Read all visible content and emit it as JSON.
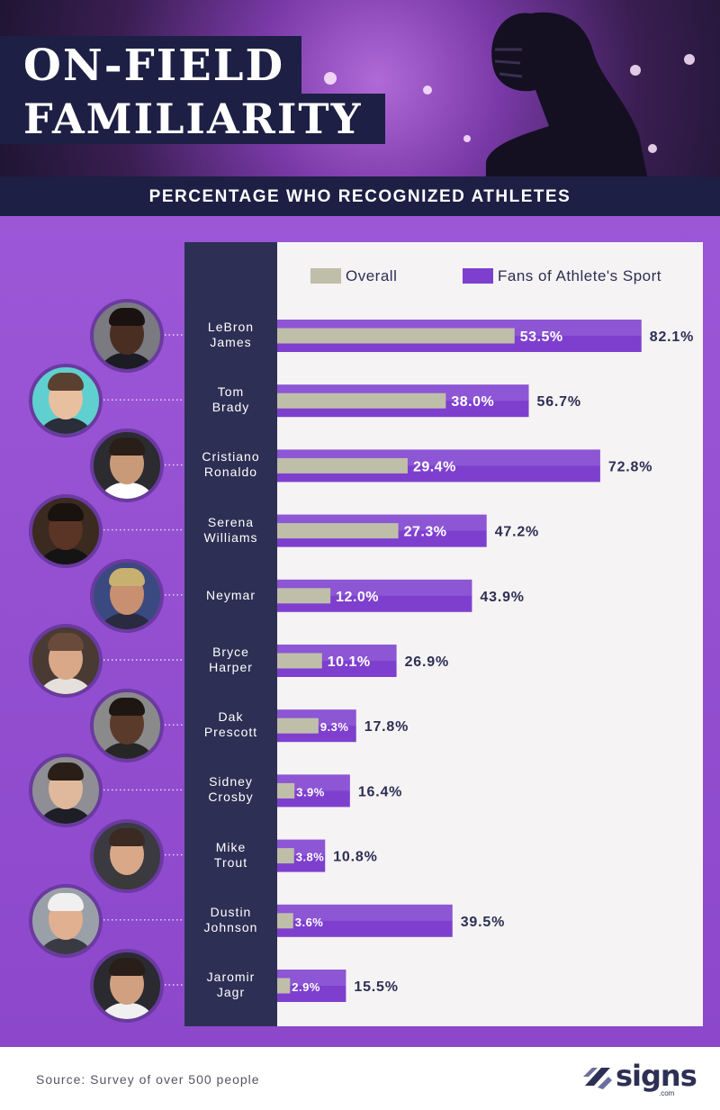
{
  "header": {
    "title_line1": "ON-FIELD",
    "title_line2": "FAMILIARITY",
    "subtitle": "PERCENTAGE WHO RECOGNIZED ATHLETES"
  },
  "colors": {
    "overall": "#bfbfa9",
    "fans": "#7e3fcf",
    "navy": "#2d2f54",
    "purple_bg": "#9150d2"
  },
  "legend": {
    "overall": "Overall",
    "fans": "Fans of Athlete's Sport"
  },
  "chart_data": {
    "type": "bar",
    "orientation": "horizontal",
    "title": "PERCENTAGE WHO RECOGNIZED ATHLETES",
    "unit": "%",
    "xlim": [
      0,
      100
    ],
    "categories": [
      {
        "line1": "LeBron",
        "line2": "James"
      },
      {
        "line1": "Tom",
        "line2": "Brady"
      },
      {
        "line1": "Cristiano",
        "line2": "Ronaldo"
      },
      {
        "line1": "Serena",
        "line2": "Williams"
      },
      {
        "line1": "Neymar",
        "line2": ""
      },
      {
        "line1": "Bryce",
        "line2": "Harper"
      },
      {
        "line1": "Dak",
        "line2": "Prescott"
      },
      {
        "line1": "Sidney",
        "line2": "Crosby"
      },
      {
        "line1": "Mike",
        "line2": "Trout"
      },
      {
        "line1": "Dustin",
        "line2": "Johnson"
      },
      {
        "line1": "Jaromir",
        "line2": "Jagr"
      }
    ],
    "series": [
      {
        "name": "Overall",
        "values": [
          53.5,
          38.0,
          29.4,
          27.3,
          12.0,
          10.1,
          9.3,
          3.9,
          3.8,
          3.6,
          2.9
        ]
      },
      {
        "name": "Fans of Athlete's Sport",
        "values": [
          82.1,
          56.7,
          72.8,
          47.2,
          43.9,
          26.9,
          17.8,
          16.4,
          10.8,
          39.5,
          15.5
        ]
      }
    ]
  },
  "avatars": [
    {
      "icon": "athlete-photo-lebron-james",
      "bg": "#7a7a80",
      "skin": "#4a2e22",
      "hair": "#1a1210",
      "shirt": "#1c1c24"
    },
    {
      "icon": "athlete-photo-tom-brady",
      "bg": "#5fd0cf",
      "skin": "#e8c0a0",
      "hair": "#5a4030",
      "shirt": "#2a2d3a"
    },
    {
      "icon": "athlete-photo-cristiano-ronaldo",
      "bg": "#2b2b30",
      "skin": "#c89a78",
      "hair": "#2a1e18",
      "shirt": "#ffffff"
    },
    {
      "icon": "athlete-photo-serena-williams",
      "bg": "#3a2a20",
      "skin": "#5a3424",
      "hair": "#1a120e",
      "shirt": "#141414"
    },
    {
      "icon": "athlete-photo-neymar",
      "bg": "#3a4a80",
      "skin": "#c89070",
      "hair": "#c8b070",
      "shirt": "#2a2a40"
    },
    {
      "icon": "athlete-photo-bryce-harper",
      "bg": "#4a3a34",
      "skin": "#d8a888",
      "hair": "#6a4a3a",
      "shirt": "#e6e0dc"
    },
    {
      "icon": "athlete-photo-dak-prescott",
      "bg": "#8a8a8a",
      "skin": "#5a3a2a",
      "hair": "#1e1612",
      "shirt": "#262626"
    },
    {
      "icon": "athlete-photo-sidney-crosby",
      "bg": "#8e8e94",
      "skin": "#e0b89c",
      "hair": "#2a1e18",
      "shirt": "#1e1e26"
    },
    {
      "icon": "athlete-photo-mike-trout",
      "bg": "#3a3a40",
      "skin": "#d8a888",
      "hair": "#3a2a22",
      "shirt": "#3a3a3a"
    },
    {
      "icon": "athlete-photo-dustin-johnson",
      "bg": "#9aa0a8",
      "skin": "#e0b090",
      "hair": "#f0f0f0",
      "shirt": "#3a3a44"
    },
    {
      "icon": "athlete-photo-jaromir-jagr",
      "bg": "#2a2a30",
      "skin": "#d0a080",
      "hair": "#2a1e18",
      "shirt": "#f0f0f0"
    }
  ],
  "footer": {
    "source": "Source: Survey of over 500 people",
    "logo_word": "signs",
    "logo_sub": ".com"
  }
}
